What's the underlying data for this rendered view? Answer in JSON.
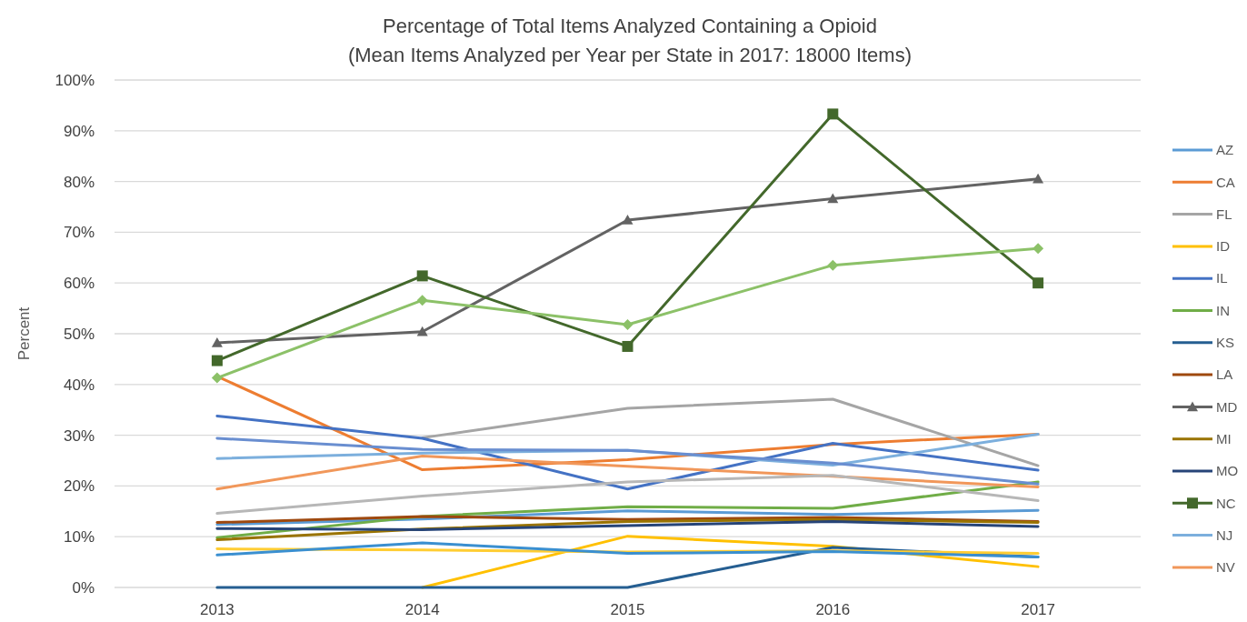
{
  "chart_data": {
    "type": "line",
    "title": "Percentage of Total Items Analyzed Containing a Opioid",
    "subtitle": "(Mean Items Analyzed per Year per State in 2017: 18000 Items)",
    "ylabel": "Percent",
    "categories": [
      "2013",
      "2014",
      "2015",
      "2016",
      "2017"
    ],
    "ylim": [
      0,
      100
    ],
    "yticks": [
      {
        "value": 0,
        "label": "0%"
      },
      {
        "value": 10,
        "label": "10%"
      },
      {
        "value": 20,
        "label": "20%"
      },
      {
        "value": 30,
        "label": "30%"
      },
      {
        "value": 40,
        "label": "40%"
      },
      {
        "value": 50,
        "label": "50%"
      },
      {
        "value": 60,
        "label": "60%"
      },
      {
        "value": 70,
        "label": "70%"
      },
      {
        "value": 80,
        "label": "80%"
      },
      {
        "value": 90,
        "label": "90%"
      },
      {
        "value": 100,
        "label": "100%"
      }
    ],
    "grid": "y",
    "legend": "right",
    "marker": "none",
    "line_style": "solid",
    "series": [
      {
        "name": "AZ",
        "color": "#5b9bd5",
        "values": [
          12.4,
          13.5,
          15.1,
          14.4,
          15.2
        ]
      },
      {
        "name": "CA",
        "color": "#ed7d31",
        "values": [
          41.6,
          23.2,
          25.2,
          28.2,
          30.2
        ]
      },
      {
        "name": "FL",
        "color": "#a5a5a5",
        "values": [
          null,
          29.5,
          35.3,
          37.1,
          24
        ]
      },
      {
        "name": "ID",
        "color": "#ffc000",
        "values": [
          null,
          0,
          10.1,
          8.1,
          4.1
        ]
      },
      {
        "name": "IL",
        "color": "#4472c4",
        "values": [
          33.8,
          29.4,
          19.4,
          28.4,
          23.1
        ]
      },
      {
        "name": "IN",
        "color": "#70ad47",
        "values": [
          9.8,
          14,
          15.9,
          15.6,
          20.8
        ]
      },
      {
        "name": "KS",
        "color": "#255e91",
        "values": [
          0,
          0,
          0,
          7.9,
          6
        ]
      },
      {
        "name": "LA",
        "color": "#9e480e",
        "values": [
          12.8,
          14,
          13.4,
          13.8,
          13
        ]
      },
      {
        "name": "MD",
        "color": "#636363",
        "marker": "triangle",
        "values": [
          48.2,
          50.4,
          72.4,
          76.6,
          80.5
        ]
      },
      {
        "name": "MI",
        "color": "#997300",
        "values": [
          9.4,
          11.5,
          13,
          13.4,
          12.8
        ]
      },
      {
        "name": "MO",
        "color": "#264478",
        "values": [
          11.6,
          11.4,
          12.2,
          13,
          12
        ]
      },
      {
        "name": "NC",
        "color": "#43682b",
        "marker": "square",
        "values": [
          44.7,
          61.4,
          47.5,
          93.3,
          60
        ]
      },
      {
        "name": "NJ",
        "color": "#7cafdd",
        "values": [
          25.4,
          26.5,
          27,
          24.1,
          30.2
        ]
      },
      {
        "name": "NV",
        "color": "#f1975a",
        "values": [
          19.4,
          25.9,
          23.9,
          21.9,
          19.8
        ]
      },
      {
        "color": "#b7b7b7",
        "values": [
          14.6,
          18,
          20.8,
          22.1,
          17.1
        ]
      },
      {
        "color": "#ffcd33",
        "values": [
          7.6,
          7.4,
          7,
          7.2,
          6.7
        ]
      },
      {
        "color": "#698ed0",
        "values": [
          29.4,
          27.2,
          27,
          24.5,
          20.4
        ]
      },
      {
        "color": "#8cc168",
        "marker": "diamond",
        "values": [
          41.3,
          56.6,
          51.8,
          63.5,
          66.8
        ]
      },
      {
        "color": "#3a8fd0",
        "values": [
          6.4,
          8.8,
          6.7,
          7.1,
          6
        ]
      }
    ]
  }
}
